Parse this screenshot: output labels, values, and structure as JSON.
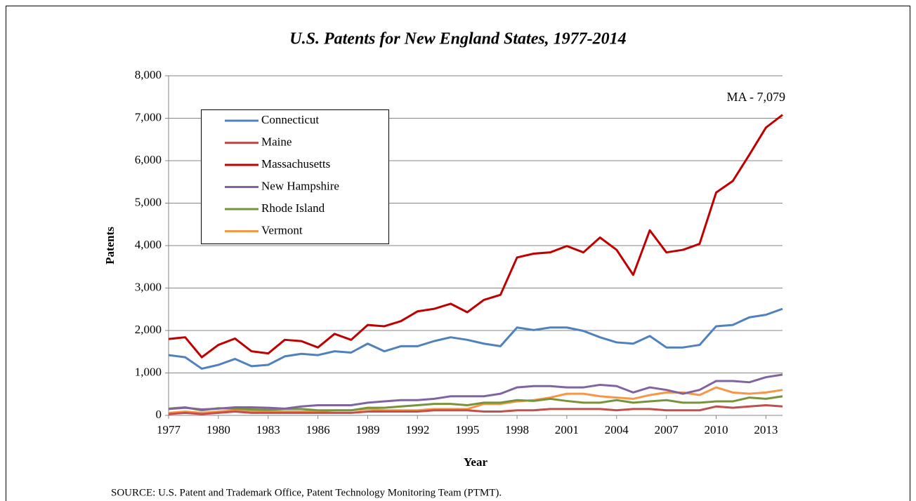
{
  "chart_data": {
    "type": "line",
    "title": "U.S. Patents for New England States, 1977-2014",
    "x_label": "Year",
    "y_label": "Patents",
    "source": "SOURCE: U.S. Patent and Trademark Office, Patent Technology Monitoring Team (PTMT).",
    "annotation": "MA - 7,079",
    "x": [
      1977,
      1978,
      1979,
      1980,
      1981,
      1982,
      1983,
      1984,
      1985,
      1986,
      1987,
      1988,
      1989,
      1990,
      1991,
      1992,
      1993,
      1994,
      1995,
      1996,
      1997,
      1998,
      1999,
      2000,
      2001,
      2002,
      2003,
      2004,
      2005,
      2006,
      2007,
      2008,
      2009,
      2010,
      2011,
      2012,
      2013,
      2014
    ],
    "xlim": [
      1977,
      2014
    ],
    "xticks": [
      1977,
      1980,
      1983,
      1986,
      1989,
      1992,
      1995,
      1998,
      2001,
      2004,
      2007,
      2010,
      2013
    ],
    "ylim": [
      0,
      8000
    ],
    "yticks": [
      0,
      {
        "value": 1000,
        "label": "1,000"
      },
      {
        "value": 2000,
        "label": "2,000"
      },
      {
        "value": 3000,
        "label": "3,000"
      },
      {
        "value": 4000,
        "label": "4,000"
      },
      {
        "value": 5000,
        "label": "5,000"
      },
      {
        "value": 6000,
        "label": "6,000"
      },
      {
        "value": 7000,
        "label": "7,000"
      },
      {
        "value": 8000,
        "label": "8,000"
      }
    ],
    "grid": true,
    "legend": "upper left",
    "series": [
      {
        "name": "Connecticut",
        "color": "#4f81bd",
        "values": [
          1420,
          1370,
          1100,
          1190,
          1330,
          1160,
          1190,
          1390,
          1450,
          1420,
          1510,
          1480,
          1690,
          1510,
          1630,
          1630,
          1750,
          1840,
          1780,
          1690,
          1630,
          2070,
          2010,
          2070,
          2070,
          1990,
          1840,
          1720,
          1690,
          1870,
          1600,
          1600,
          1660,
          2100,
          2130,
          2310,
          2370,
          2510
        ]
      },
      {
        "name": "Maine",
        "color": "#c0504d",
        "values": [
          30,
          60,
          30,
          60,
          90,
          60,
          60,
          60,
          60,
          60,
          60,
          60,
          90,
          90,
          90,
          90,
          120,
          120,
          120,
          90,
          90,
          120,
          120,
          150,
          150,
          150,
          150,
          120,
          150,
          150,
          120,
          120,
          120,
          210,
          180,
          210,
          240,
          210
        ]
      },
      {
        "name": "Massachusetts",
        "color": "#c00000",
        "values": [
          1800,
          1840,
          1370,
          1660,
          1810,
          1510,
          1460,
          1780,
          1750,
          1600,
          1920,
          1780,
          2130,
          2100,
          2220,
          2450,
          2510,
          2630,
          2430,
          2720,
          2840,
          3720,
          3810,
          3840,
          3990,
          3840,
          4190,
          3900,
          3310,
          4360,
          3840,
          3900,
          4040,
          5250,
          5520,
          6140,
          6780,
          7079
        ]
      },
      {
        "name": "New Hampshire",
        "color": "#8064a2",
        "values": [
          150,
          180,
          140,
          160,
          190,
          190,
          180,
          160,
          210,
          240,
          240,
          240,
          300,
          330,
          360,
          360,
          390,
          450,
          450,
          450,
          510,
          660,
          690,
          690,
          660,
          660,
          720,
          690,
          540,
          660,
          600,
          510,
          600,
          810,
          810,
          780,
          900,
          960
        ]
      },
      {
        "name": "Rhode Island",
        "color": "#77933c",
        "values": [
          160,
          190,
          120,
          170,
          160,
          140,
          130,
          150,
          150,
          120,
          120,
          120,
          180,
          180,
          210,
          240,
          270,
          270,
          240,
          300,
          300,
          360,
          340,
          390,
          340,
          300,
          300,
          360,
          300,
          330,
          360,
          300,
          300,
          330,
          330,
          420,
          390,
          450
        ]
      },
      {
        "name": "Vermont",
        "color": "#f79646",
        "values": [
          60,
          90,
          60,
          90,
          120,
          90,
          90,
          90,
          90,
          90,
          120,
          120,
          150,
          120,
          120,
          120,
          150,
          150,
          150,
          270,
          270,
          330,
          360,
          420,
          510,
          510,
          450,
          420,
          390,
          480,
          540,
          540,
          480,
          660,
          540,
          510,
          540,
          600
        ]
      }
    ]
  }
}
